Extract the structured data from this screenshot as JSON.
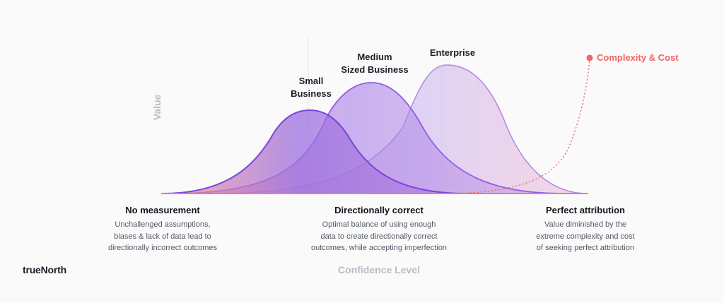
{
  "curves": [
    {
      "label_lines": [
        "Small",
        "Business"
      ]
    },
    {
      "label_lines": [
        "Medium",
        "Sized Business"
      ]
    },
    {
      "label_lines": [
        "Enterprise"
      ]
    }
  ],
  "complexity_label": "Complexity & Cost",
  "axis": {
    "y": "Value",
    "x": "Confidence Level"
  },
  "sections": [
    {
      "title": "No measurement",
      "lines": [
        "Unchallenged assumptions,",
        "biases & lack of data lead to",
        "directionally incorrect outcomes"
      ]
    },
    {
      "title": "Directionally correct",
      "lines": [
        "Optimal balance of using enough",
        "data to create directionally correct",
        "outcomes, while accepting imperfection"
      ]
    },
    {
      "title": "Perfect attribution",
      "lines": [
        "Value diminished by the",
        "extreme complexity and cost",
        "of seeking perfect attribution"
      ]
    }
  ],
  "logo": "trueNorth",
  "colors": {
    "accent": "#f06565",
    "curve_stroke": "#8b5cf6",
    "axis_text": "#b9bdc6"
  }
}
